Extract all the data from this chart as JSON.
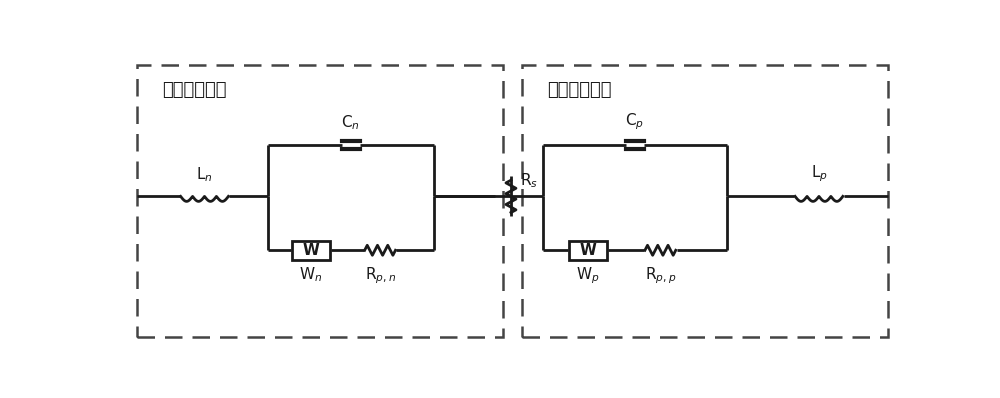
{
  "title_left": "负极等效电路",
  "title_right": "正极等效电路",
  "bg_color": "#ffffff",
  "line_color": "#1a1a1a",
  "lw": 2.0,
  "lw_thick": 2.5
}
